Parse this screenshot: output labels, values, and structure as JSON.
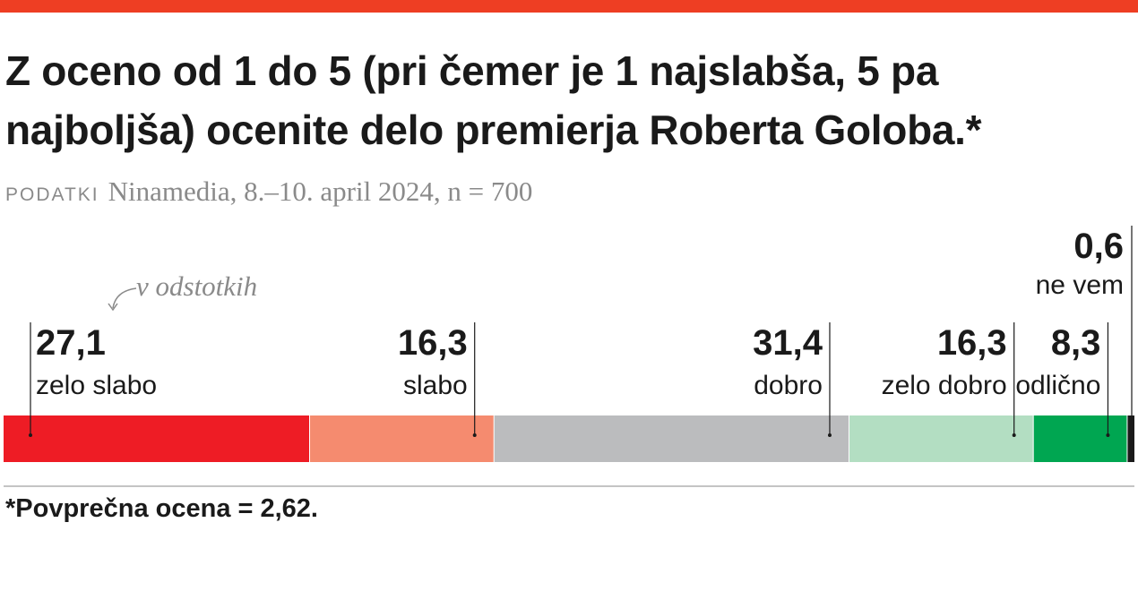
{
  "title": "Z oceno od 1 do 5 (pri čemer je 1 najslabša, 5 pa najboljša) ocenite delo premierja Roberta Goloba.*",
  "source": {
    "label": "PODATKI",
    "text": "Ninamedia, 8.–10. april 2024, n = 700"
  },
  "unit_note": "v odstotkih",
  "footnote": "*Povprečna ocena = 2,62.",
  "colors": {
    "accent": "#ee3e23",
    "zelo_slabo": "#ee1c25",
    "slabo": "#f58b6f",
    "dobro": "#bbbcbe",
    "zelo_dobro": "#b3dec2",
    "odlicno": "#00a651",
    "ne_vem": "#1a1a1a"
  },
  "chart_data": {
    "type": "bar",
    "orientation": "horizontal-stacked",
    "categories": [
      "zelo slabo",
      "slabo",
      "dobro",
      "zelo dobro",
      "odlično",
      "ne vem"
    ],
    "values": [
      27.1,
      16.3,
      31.4,
      16.3,
      8.3,
      0.6
    ],
    "value_labels": [
      "27,1",
      "16,3",
      "31,4",
      "16,3",
      "8,3",
      "0,6"
    ],
    "xlim": [
      0,
      100
    ]
  }
}
